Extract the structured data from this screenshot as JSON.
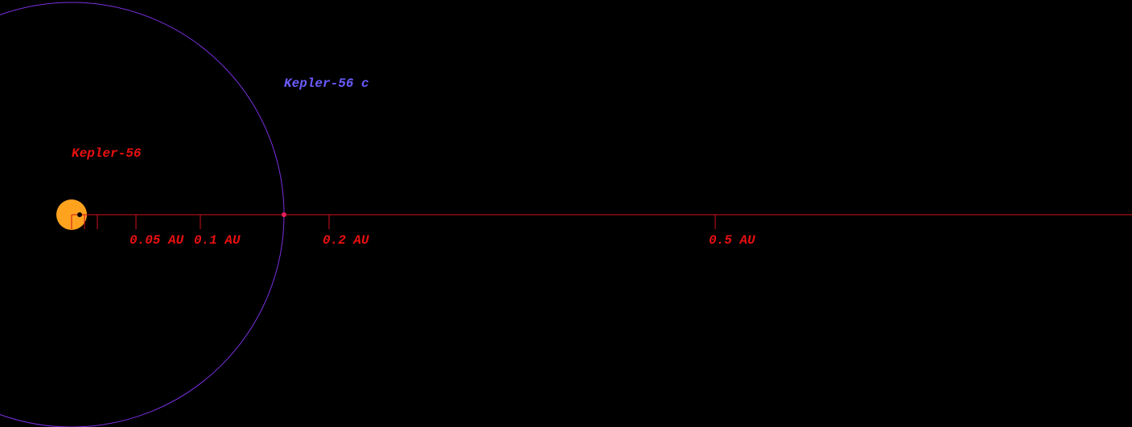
{
  "star": {
    "label": "Kepler-56"
  },
  "planet": {
    "label": "Kepler-56 c"
  },
  "scale": {
    "ticks": [
      "0.05 AU",
      "0.1 AU",
      "0.2 AU",
      "0.5 AU"
    ]
  }
}
